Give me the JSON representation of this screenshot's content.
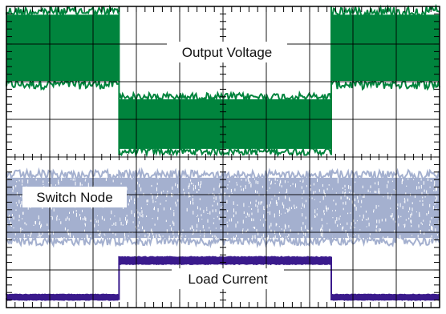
{
  "chart_data": {
    "type": "line",
    "grid": true,
    "divisions": {
      "x": 10,
      "y": 8
    },
    "series": [
      {
        "name": "Output Voltage",
        "color": "#00843d",
        "segments": [
          {
            "x_start": 0.0,
            "x_end": 2.6,
            "y_low": 5.8,
            "y_high": 8.0
          },
          {
            "x_start": 2.6,
            "x_end": 7.5,
            "y_low": 4.05,
            "y_high": 5.7
          },
          {
            "x_start": 7.5,
            "x_end": 10.0,
            "y_low": 5.8,
            "y_high": 8.0
          }
        ]
      },
      {
        "name": "Switch Node",
        "color": "#a4b0cf",
        "segments": [
          {
            "x_start": 0.0,
            "x_end": 2.6,
            "y_low": 1.65,
            "y_high": 3.65
          },
          {
            "x_start": 2.6,
            "x_end": 7.5,
            "y_low": 1.65,
            "y_high": 3.65
          },
          {
            "x_start": 7.5,
            "x_end": 10.0,
            "y_low": 1.65,
            "y_high": 3.65
          }
        ]
      },
      {
        "name": "Load Current",
        "color": "#3a1a8c",
        "segments": [
          {
            "x_start": 0.0,
            "x_end": 2.6,
            "y_low": 0.2,
            "y_high": 0.35
          },
          {
            "x_start": 2.6,
            "x_end": 7.5,
            "y_low": 1.15,
            "y_high": 1.35
          },
          {
            "x_start": 7.5,
            "x_end": 10.0,
            "y_low": 0.2,
            "y_high": 0.35
          }
        ]
      }
    ],
    "annotations": {
      "output_voltage": "Output Voltage",
      "switch_node": "Switch Node",
      "load_current": "Load Current"
    }
  }
}
